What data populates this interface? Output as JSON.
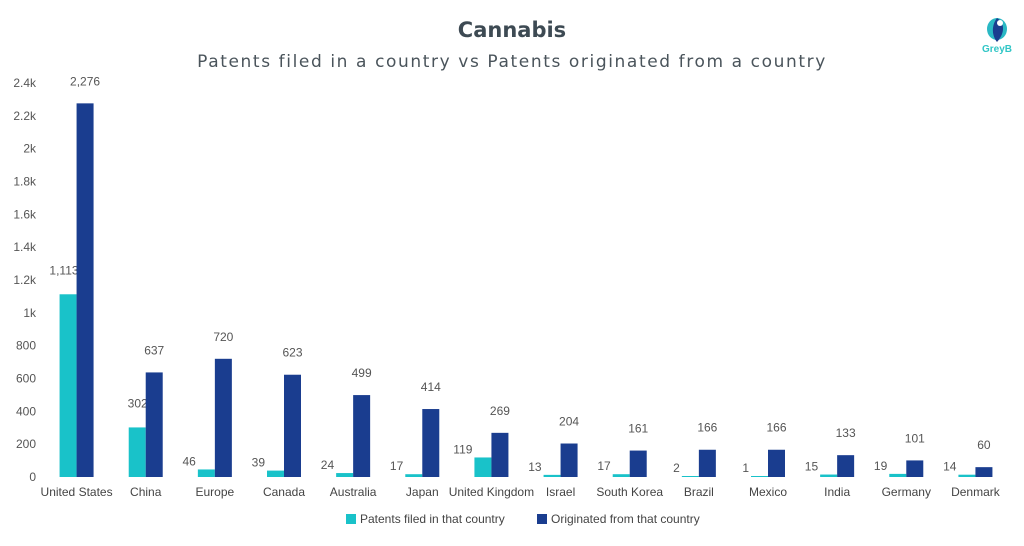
{
  "brand": {
    "logo_text": "GreyB"
  },
  "chart_data": {
    "type": "bar",
    "title": "Cannabis",
    "subtitle": "Patents filed in a country vs Patents originated from a country",
    "categories": [
      "United States",
      "China",
      "Europe",
      "Canada",
      "Australia",
      "Japan",
      "United Kingdom",
      "Israel",
      "South Korea",
      "Brazil",
      "Mexico",
      "India",
      "Germany",
      "Denmark"
    ],
    "series": [
      {
        "name": "Patents filed in that country",
        "color": "#19c2c9",
        "values": [
          1113,
          302,
          46,
          39,
          24,
          17,
          119,
          13,
          17,
          2,
          1,
          15,
          19,
          14
        ],
        "labels": [
          "1,113",
          "302",
          "46",
          "39",
          "24",
          "17",
          "119",
          "13",
          "17",
          "2",
          "1",
          "15",
          "19",
          "14"
        ]
      },
      {
        "name": "Originated from that country",
        "color": "#1a3d8f",
        "values": [
          2276,
          637,
          720,
          623,
          499,
          414,
          269,
          204,
          161,
          166,
          166,
          133,
          101,
          60
        ],
        "labels": [
          "2,276",
          "637",
          "720",
          "623",
          "499",
          "414",
          "269",
          "204",
          "161",
          "166",
          "166",
          "133",
          "101",
          "60"
        ]
      }
    ],
    "y_ticks": [
      "0",
      "200",
      "400",
      "600",
      "800",
      "1k",
      "1.2k",
      "1.4k",
      "1.6k",
      "1.8k",
      "2k",
      "2.2k",
      "2.4k"
    ],
    "ylim": [
      0,
      2400
    ],
    "grid": false,
    "legend_position": "bottom"
  }
}
